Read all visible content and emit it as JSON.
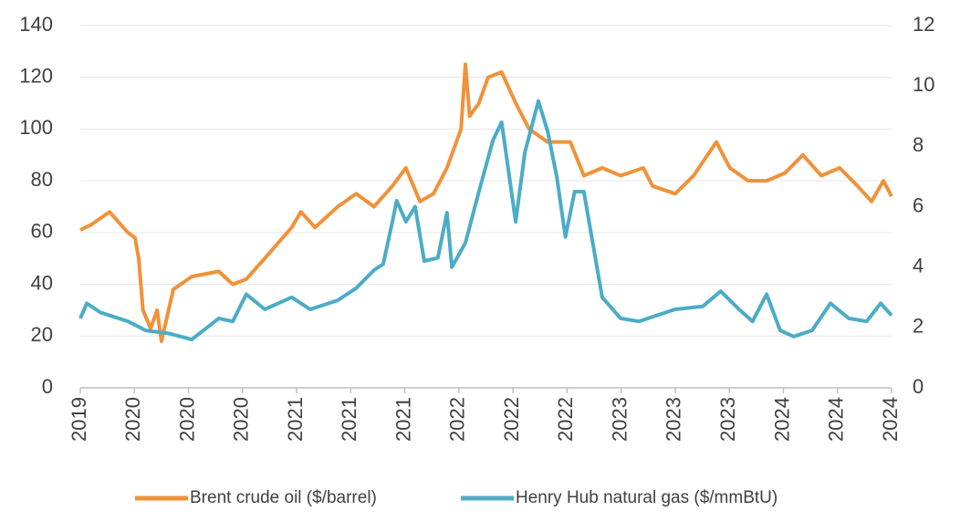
{
  "chart_data": {
    "type": "line",
    "xlim": [
      0,
      15
    ],
    "xticks": [
      {
        "value": 0,
        "label": "2019"
      },
      {
        "value": 1,
        "label": "2020"
      },
      {
        "value": 2,
        "label": "2020"
      },
      {
        "value": 3,
        "label": "2020"
      },
      {
        "value": 4,
        "label": "2021"
      },
      {
        "value": 5,
        "label": "2021"
      },
      {
        "value": 6,
        "label": "2021"
      },
      {
        "value": 7,
        "label": "2022"
      },
      {
        "value": 8,
        "label": "2022"
      },
      {
        "value": 9,
        "label": "2022"
      },
      {
        "value": 10,
        "label": "2023"
      },
      {
        "value": 11,
        "label": "2023"
      },
      {
        "value": 12,
        "label": "2023"
      },
      {
        "value": 13,
        "label": "2024"
      },
      {
        "value": 14,
        "label": "2024"
      },
      {
        "value": 15,
        "label": "2024"
      }
    ],
    "ylim": [
      0,
      140
    ],
    "yticks": [
      0,
      20,
      40,
      60,
      80,
      100,
      120,
      140
    ],
    "y2lim": [
      0,
      12
    ],
    "y2ticks": [
      0,
      2,
      4,
      6,
      8,
      10,
      12
    ],
    "grid": true,
    "legend": "bottom",
    "series": [
      {
        "name": "Brent crude oil ($/barrel)",
        "color": "#f0923a",
        "x": [
          0,
          0.2,
          0.54,
          0.88,
          1.01,
          1.08,
          1.16,
          1.3,
          1.42,
          1.5,
          1.72,
          2.06,
          2.56,
          2.82,
          3.07,
          3.41,
          3.91,
          4.08,
          4.34,
          4.76,
          5.1,
          5.43,
          5.77,
          6.02,
          6.28,
          6.53,
          6.78,
          7.04,
          7.12,
          7.2,
          7.37,
          7.54,
          7.79,
          8.05,
          8.3,
          8.64,
          9.06,
          9.31,
          9.65,
          9.99,
          10.41,
          10.58,
          11.0,
          11.34,
          11.76,
          12.01,
          12.35,
          12.69,
          13.03,
          13.36,
          13.7,
          14.04,
          14.37,
          14.63,
          14.85,
          15
        ],
        "values": [
          61,
          63,
          68,
          60,
          58,
          50,
          30,
          23,
          30,
          18,
          38,
          43,
          45,
          40,
          42,
          50,
          62,
          68,
          62,
          70,
          75,
          70,
          78,
          85,
          72,
          75,
          85,
          100,
          125,
          105,
          110,
          120,
          122,
          110,
          100,
          95,
          95,
          82,
          85,
          82,
          85,
          78,
          75,
          82,
          95,
          85,
          80,
          80,
          83,
          90,
          82,
          85,
          78,
          72,
          80,
          74
        ]
      },
      {
        "name": "Henry Hub natural gas ($/mmBtU)",
        "color": "#4bacc6",
        "axis": "y2",
        "x": [
          0,
          0.12,
          0.37,
          0.88,
          1.21,
          1.64,
          2.06,
          2.56,
          2.82,
          3.07,
          3.41,
          3.91,
          4.25,
          4.76,
          5.1,
          5.43,
          5.6,
          5.77,
          5.85,
          6.02,
          6.19,
          6.36,
          6.61,
          6.78,
          6.87,
          7.12,
          7.37,
          7.63,
          7.79,
          8.05,
          8.22,
          8.47,
          8.64,
          8.81,
          8.97,
          9.14,
          9.31,
          9.65,
          9.99,
          10.33,
          10.66,
          11.0,
          11.51,
          11.84,
          12.18,
          12.43,
          12.69,
          12.94,
          13.19,
          13.53,
          13.87,
          14.21,
          14.54,
          14.8,
          15
        ],
        "values": [
          2.3,
          2.8,
          2.5,
          2.2,
          1.9,
          1.8,
          1.6,
          2.3,
          2.2,
          3.1,
          2.6,
          3.0,
          2.6,
          2.9,
          3.3,
          3.9,
          4.1,
          5.5,
          6.2,
          5.5,
          6.0,
          4.2,
          4.3,
          5.8,
          4.0,
          4.8,
          6.5,
          8.2,
          8.8,
          5.5,
          7.8,
          9.5,
          8.5,
          7.0,
          5.0,
          6.5,
          6.5,
          3.0,
          2.3,
          2.2,
          2.4,
          2.6,
          2.7,
          3.2,
          2.6,
          2.2,
          3.1,
          1.9,
          1.7,
          1.9,
          2.8,
          2.3,
          2.2,
          2.8,
          2.4
        ]
      }
    ]
  }
}
